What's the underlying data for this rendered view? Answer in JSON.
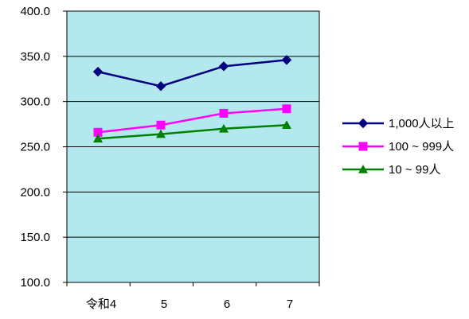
{
  "chart_data": {
    "type": "line",
    "categories": [
      "令和4",
      "5",
      "6",
      "7"
    ],
    "ylim": [
      100,
      400
    ],
    "y_ticks": [
      "400.0",
      "350.0",
      "300.0",
      "250.0",
      "200.0",
      "150.0",
      "100.0"
    ],
    "y_tick_values": [
      400,
      350,
      300,
      250,
      200,
      150,
      100
    ],
    "grid": true,
    "legend": "right",
    "plot_background": "#B3E9EE",
    "series": [
      {
        "name": "1,000人以上",
        "values": [
          333,
          317,
          339,
          346
        ],
        "color": "#000080",
        "marker": "diamond"
      },
      {
        "name": "100 ~ 999人",
        "values": [
          266,
          274,
          287,
          292
        ],
        "color": "#FF00FF",
        "marker": "square"
      },
      {
        "name": "10 ~ 99人",
        "values": [
          259,
          264,
          270,
          274
        ],
        "color": "#008000",
        "marker": "triangle"
      }
    ]
  }
}
